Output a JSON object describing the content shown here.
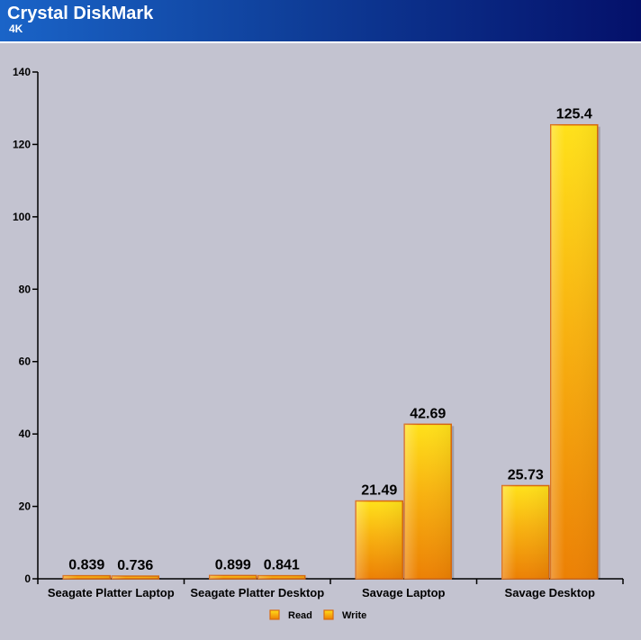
{
  "header": {
    "title": "Crystal DiskMark",
    "subtitle": "4K"
  },
  "colors": {
    "bar_top": "#ffe11a",
    "bar_mid": "#f8b210",
    "bar_bottom": "#ec8004",
    "bar_stroke": "#d96a10",
    "background": "#c3c3d0",
    "header_left": "#1a64c8",
    "header_right": "#04106a"
  },
  "chart_data": {
    "type": "bar",
    "title": "Crystal DiskMark",
    "subtitle": "4K",
    "xlabel": "",
    "ylabel": "",
    "categories": [
      "Seagate Platter Laptop",
      "Seagate Platter Desktop",
      "Savage Laptop",
      "Savage Desktop"
    ],
    "series": [
      {
        "name": "Read",
        "values": [
          0.839,
          0.899,
          21.49,
          25.73
        ],
        "labels": [
          "0.839",
          "0.899",
          "21.49",
          "25.73"
        ]
      },
      {
        "name": "Write",
        "values": [
          0.736,
          0.841,
          42.69,
          125.4
        ],
        "labels": [
          "0.736",
          "0.841",
          "42.69",
          "125.4"
        ]
      }
    ],
    "ylim": [
      0,
      140
    ],
    "yticks": [
      0,
      20,
      40,
      60,
      80,
      100,
      120,
      140
    ],
    "grid": false,
    "legend": {
      "position": "bottom-center",
      "entries": [
        "Read",
        "Write"
      ]
    }
  }
}
